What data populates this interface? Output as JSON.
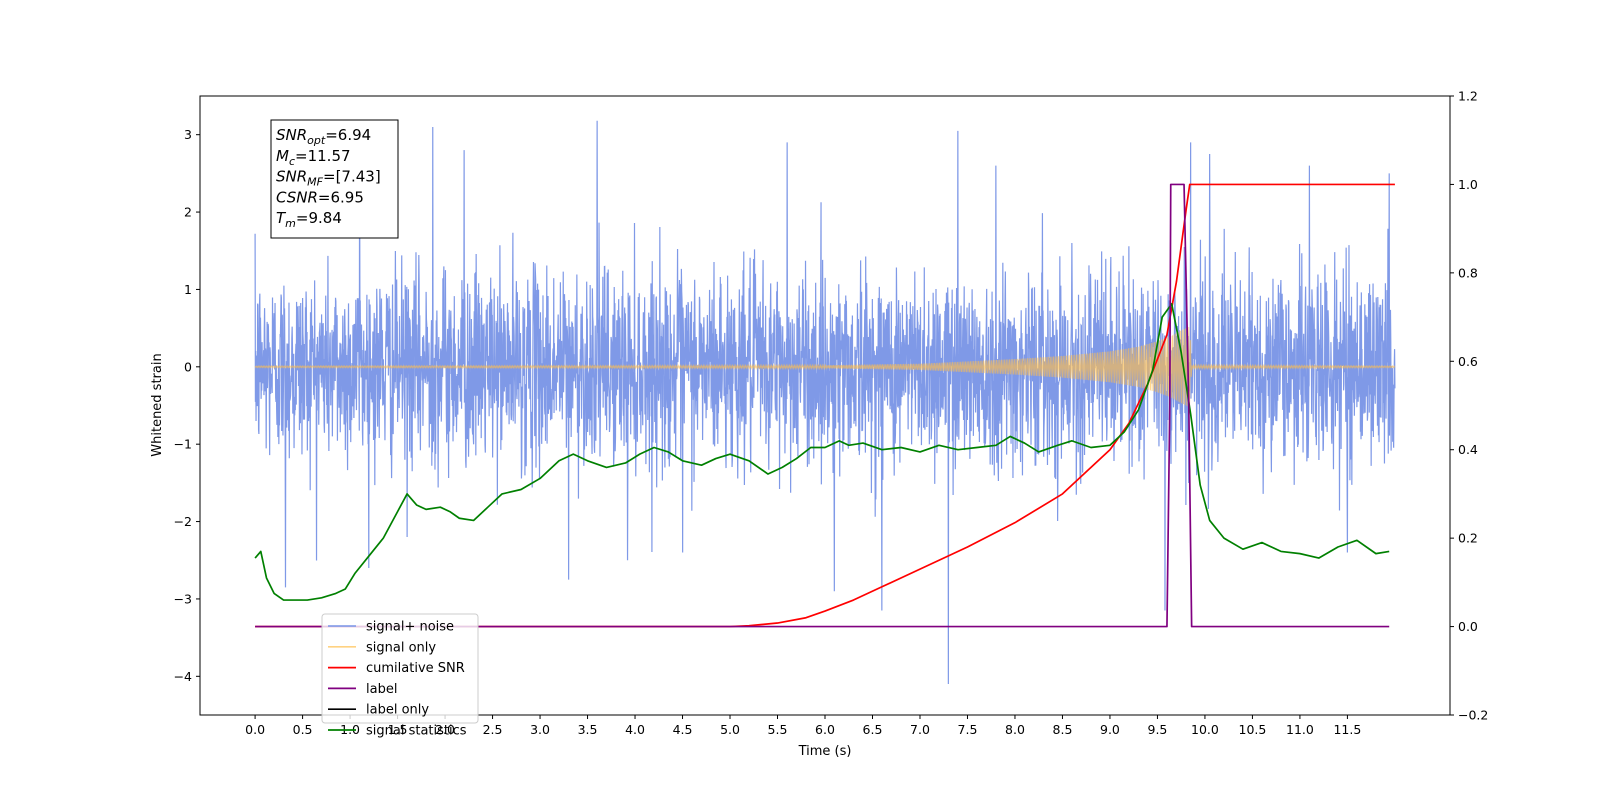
{
  "chart_data": {
    "type": "line",
    "title": "",
    "xlabel": "Time (s)",
    "ylabel": "Whitened strain",
    "y2label": "",
    "xlim": [
      -0.58,
      12.58
    ],
    "ylim": [
      -4.5,
      3.5
    ],
    "y2lim": [
      -0.2,
      1.2
    ],
    "x_ticks": [
      0.0,
      0.5,
      1.0,
      1.5,
      2.0,
      2.5,
      3.0,
      3.5,
      4.0,
      4.5,
      5.0,
      5.5,
      6.0,
      6.5,
      7.0,
      7.5,
      8.0,
      8.5,
      9.0,
      9.5,
      10.0,
      10.5,
      11.0,
      11.5
    ],
    "x_tick_labels": [
      "0.0",
      "0.5",
      "1.0",
      "1.5",
      "2.0",
      "2.5",
      "3.0",
      "3.5",
      "4.0",
      "4.5",
      "5.0",
      "5.5",
      "6.0",
      "6.5",
      "7.0",
      "7.5",
      "8.0",
      "8.5",
      "9.0",
      "9.5",
      "10.0",
      "10.5",
      "11.0",
      "11.5"
    ],
    "y_ticks": [
      -4,
      -3,
      -2,
      -1,
      0,
      1,
      2,
      3
    ],
    "y_tick_labels": [
      "−4",
      "−3",
      "−2",
      "−1",
      "0",
      "1",
      "2",
      "3"
    ],
    "y2_ticks": [
      -0.2,
      0.0,
      0.2,
      0.4,
      0.6,
      0.8,
      1.0,
      1.2
    ],
    "y2_tick_labels": [
      "−0.2",
      "0.0",
      "0.2",
      "0.4",
      "0.6",
      "0.8",
      "1.0",
      "1.2"
    ],
    "grid": false,
    "legend_position": "lower-left",
    "annotation": {
      "position": "top-left",
      "lines": [
        {
          "base": "SNR",
          "sub": "opt",
          "value": "=6.94"
        },
        {
          "base": "M",
          "sub": "c",
          "value": "=11.57"
        },
        {
          "base": "SNR",
          "sub": "MF",
          "value": "=[7.43]"
        },
        {
          "base": "CSNR",
          "sub": "",
          "value": "=6.95"
        },
        {
          "base": "T",
          "sub": "m",
          "value": "=9.84"
        }
      ]
    },
    "series": [
      {
        "name": "signal+ noise",
        "axis": "left",
        "color": "#7894e6",
        "kind": "noise",
        "x_range": [
          0.0,
          12.0
        ],
        "noise_std": 0.62,
        "spike_values": [
          {
            "x": 0.32,
            "y": -2.85
          },
          {
            "x": 1.1,
            "y": 2.9
          },
          {
            "x": 1.6,
            "y": -2.2
          },
          {
            "x": 1.87,
            "y": 3.1
          },
          {
            "x": 2.2,
            "y": 2.8
          },
          {
            "x": 3.3,
            "y": -2.75
          },
          {
            "x": 3.6,
            "y": 3.18
          },
          {
            "x": 3.92,
            "y": -2.5
          },
          {
            "x": 4.5,
            "y": -2.4
          },
          {
            "x": 5.6,
            "y": 2.9
          },
          {
            "x": 6.1,
            "y": -2.9
          },
          {
            "x": 6.6,
            "y": -3.15
          },
          {
            "x": 7.3,
            "y": -4.1
          },
          {
            "x": 7.4,
            "y": 3.05
          },
          {
            "x": 7.8,
            "y": 2.6
          },
          {
            "x": 9.58,
            "y": -3.15
          },
          {
            "x": 9.85,
            "y": 2.9
          },
          {
            "x": 10.05,
            "y": 2.75
          },
          {
            "x": 11.1,
            "y": 2.6
          },
          {
            "x": 11.5,
            "y": -2.4
          },
          {
            "x": 11.94,
            "y": 2.5
          }
        ]
      },
      {
        "name": "signal only",
        "axis": "left",
        "color": "#ffbf4d",
        "kind": "envelope",
        "x": [
          0.0,
          4.0,
          6.0,
          7.0,
          8.0,
          8.5,
          9.0,
          9.3,
          9.5,
          9.65,
          9.75,
          9.8,
          9.84,
          9.86,
          10.0,
          11.0,
          12.0
        ],
        "amplitude": [
          0.01,
          0.015,
          0.02,
          0.04,
          0.1,
          0.14,
          0.2,
          0.26,
          0.33,
          0.4,
          0.47,
          0.5,
          0.52,
          0.02,
          0.02,
          0.015,
          0.01
        ]
      },
      {
        "name": "cumilative SNR",
        "axis": "right",
        "color": "#ff0000",
        "x": [
          0.0,
          5.0,
          5.2,
          5.5,
          5.8,
          6.0,
          6.3,
          6.6,
          7.0,
          7.5,
          8.0,
          8.5,
          9.0,
          9.2,
          9.4,
          9.6,
          9.7,
          9.8,
          9.84,
          10.0,
          12.0
        ],
        "values": [
          0.0,
          0.0,
          0.002,
          0.008,
          0.02,
          0.035,
          0.06,
          0.09,
          0.13,
          0.18,
          0.235,
          0.3,
          0.4,
          0.46,
          0.55,
          0.66,
          0.78,
          0.94,
          1.0,
          1.0,
          1.0
        ]
      },
      {
        "name": "label",
        "axis": "right",
        "color": "#800080",
        "x": [
          0.0,
          9.6,
          9.63,
          9.64,
          9.78,
          9.83,
          9.86,
          11.94
        ],
        "values": [
          0.0,
          0.0,
          0.5,
          1.0,
          1.0,
          0.5,
          0.0,
          0.0
        ]
      },
      {
        "name": "label only",
        "axis": "right",
        "color": "#000000",
        "x": [],
        "values": []
      },
      {
        "name": "signal statistics",
        "axis": "right",
        "color": "#008000",
        "x": [
          0.0,
          0.06,
          0.12,
          0.2,
          0.3,
          0.4,
          0.55,
          0.7,
          0.85,
          0.95,
          1.05,
          1.2,
          1.35,
          1.5,
          1.6,
          1.7,
          1.8,
          1.95,
          2.05,
          2.15,
          2.3,
          2.45,
          2.6,
          2.8,
          3.0,
          3.2,
          3.35,
          3.5,
          3.7,
          3.9,
          4.05,
          4.2,
          4.35,
          4.5,
          4.7,
          4.85,
          5.0,
          5.2,
          5.4,
          5.55,
          5.7,
          5.85,
          6.0,
          6.15,
          6.25,
          6.4,
          6.6,
          6.8,
          7.0,
          7.2,
          7.4,
          7.6,
          7.8,
          7.95,
          8.1,
          8.25,
          8.45,
          8.6,
          8.8,
          9.0,
          9.15,
          9.3,
          9.45,
          9.55,
          9.65,
          9.75,
          9.85,
          9.95,
          10.05,
          10.2,
          10.4,
          10.6,
          10.8,
          11.0,
          11.2,
          11.4,
          11.6,
          11.8,
          11.94
        ],
        "values": [
          0.155,
          0.17,
          0.11,
          0.075,
          0.06,
          0.06,
          0.06,
          0.065,
          0.075,
          0.085,
          0.12,
          0.16,
          0.2,
          0.26,
          0.3,
          0.275,
          0.265,
          0.27,
          0.26,
          0.245,
          0.24,
          0.27,
          0.3,
          0.31,
          0.335,
          0.375,
          0.39,
          0.375,
          0.36,
          0.37,
          0.39,
          0.405,
          0.395,
          0.375,
          0.365,
          0.38,
          0.39,
          0.375,
          0.345,
          0.36,
          0.38,
          0.405,
          0.405,
          0.42,
          0.41,
          0.415,
          0.4,
          0.405,
          0.395,
          0.41,
          0.4,
          0.405,
          0.41,
          0.43,
          0.415,
          0.395,
          0.41,
          0.42,
          0.405,
          0.41,
          0.44,
          0.49,
          0.58,
          0.7,
          0.73,
          0.62,
          0.48,
          0.32,
          0.24,
          0.2,
          0.175,
          0.19,
          0.17,
          0.165,
          0.155,
          0.18,
          0.195,
          0.165,
          0.17
        ]
      }
    ]
  }
}
